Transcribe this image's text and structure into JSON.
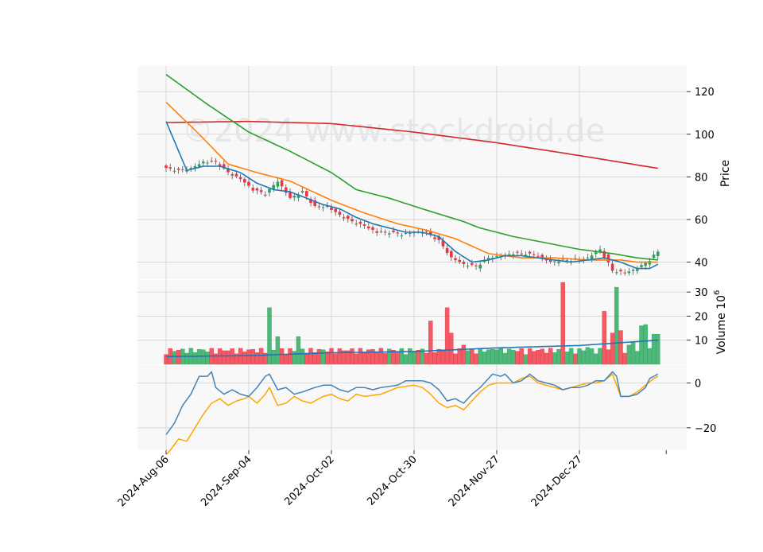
{
  "chart_data": {
    "type": "candlestick",
    "watermark": "©2024 www.stockdroid.de",
    "x_tick_labels": [
      "2024-Aug-06",
      "2024-Sep-04",
      "2024-Oct-02",
      "2024-Oct-30",
      "2024-Nov-27",
      "2024-Dec-27"
    ],
    "x_tick_indices": [
      0,
      20,
      40,
      60,
      80,
      100
    ],
    "n_bars": 120,
    "colors": {
      "up": "#26a65b",
      "down": "#ef3340",
      "ma_short": "#1f77b4",
      "ma_mid": "#ff7f0e",
      "ma_long": "#2ca02c",
      "ma_200": "#d62728",
      "macd": "#4682b4",
      "signal": "#ffa500",
      "grid": "#d0d0d0",
      "panel_bg": "#f8f8f8"
    },
    "price_panel": {
      "ylabel": "Price",
      "ylim": [
        32,
        132
      ],
      "yticks": [
        "40",
        "60",
        "80",
        "100",
        "120"
      ],
      "ytick_values": [
        40,
        60,
        80,
        100,
        120
      ],
      "close_anchors": [
        [
          0,
          84
        ],
        [
          3,
          83
        ],
        [
          6,
          84
        ],
        [
          9,
          87
        ],
        [
          12,
          87
        ],
        [
          15,
          82
        ],
        [
          18,
          79
        ],
        [
          21,
          74
        ],
        [
          24,
          72
        ],
        [
          27,
          78
        ],
        [
          30,
          70
        ],
        [
          33,
          73
        ],
        [
          36,
          66
        ],
        [
          39,
          66
        ],
        [
          42,
          62
        ],
        [
          45,
          59
        ],
        [
          48,
          57
        ],
        [
          51,
          54
        ],
        [
          54,
          54
        ],
        [
          57,
          53
        ],
        [
          60,
          54
        ],
        [
          63,
          54
        ],
        [
          66,
          50
        ],
        [
          69,
          42
        ],
        [
          72,
          39
        ],
        [
          75,
          38
        ],
        [
          78,
          42
        ],
        [
          81,
          43
        ],
        [
          84,
          44
        ],
        [
          87,
          44
        ],
        [
          90,
          43
        ],
        [
          93,
          40
        ],
        [
          96,
          41
        ],
        [
          99,
          41
        ],
        [
          102,
          42
        ],
        [
          105,
          46
        ],
        [
          108,
          36
        ],
        [
          111,
          35
        ],
        [
          114,
          37
        ],
        [
          117,
          41
        ],
        [
          119,
          45
        ]
      ],
      "ma_short_anchors": [
        [
          0,
          106
        ],
        [
          5,
          83
        ],
        [
          9,
          85
        ],
        [
          13,
          85
        ],
        [
          18,
          82
        ],
        [
          22,
          77
        ],
        [
          26,
          74
        ],
        [
          30,
          73
        ],
        [
          34,
          70
        ],
        [
          38,
          67
        ],
        [
          42,
          65
        ],
        [
          46,
          61
        ],
        [
          50,
          58
        ],
        [
          54,
          56
        ],
        [
          58,
          54
        ],
        [
          62,
          54
        ],
        [
          66,
          52
        ],
        [
          70,
          45
        ],
        [
          74,
          40
        ],
        [
          78,
          41
        ],
        [
          82,
          43
        ],
        [
          86,
          43
        ],
        [
          90,
          42
        ],
        [
          94,
          41
        ],
        [
          98,
          40
        ],
        [
          102,
          41
        ],
        [
          106,
          42
        ],
        [
          110,
          40
        ],
        [
          114,
          37
        ],
        [
          117,
          37
        ],
        [
          119,
          39
        ]
      ],
      "ma_mid_anchors": [
        [
          0,
          115
        ],
        [
          8,
          100
        ],
        [
          15,
          86
        ],
        [
          22,
          82
        ],
        [
          30,
          78
        ],
        [
          40,
          69
        ],
        [
          48,
          63
        ],
        [
          56,
          58
        ],
        [
          63,
          55
        ],
        [
          70,
          51
        ],
        [
          78,
          44
        ],
        [
          86,
          42
        ],
        [
          94,
          42
        ],
        [
          102,
          41
        ],
        [
          110,
          41
        ],
        [
          114,
          40
        ],
        [
          119,
          40
        ]
      ],
      "ma_long_anchors": [
        [
          0,
          128
        ],
        [
          10,
          114
        ],
        [
          20,
          101
        ],
        [
          30,
          92
        ],
        [
          40,
          82
        ],
        [
          46,
          74
        ],
        [
          54,
          70
        ],
        [
          62,
          65
        ],
        [
          72,
          59
        ],
        [
          76,
          56
        ],
        [
          84,
          52
        ],
        [
          92,
          49
        ],
        [
          100,
          46
        ],
        [
          108,
          44
        ],
        [
          114,
          42
        ],
        [
          119,
          41
        ]
      ],
      "ma_200_anchors": [
        [
          0,
          105.5
        ],
        [
          20,
          106
        ],
        [
          40,
          105
        ],
        [
          60,
          101
        ],
        [
          80,
          96
        ],
        [
          100,
          90
        ],
        [
          119,
          84
        ]
      ]
    },
    "volume_panel": {
      "ylabel": "Volume  10^6",
      "ylim": [
        0,
        35
      ],
      "yticks": [
        "10",
        "20",
        "30"
      ],
      "ytick_values": [
        10,
        20,
        30
      ],
      "base_level": 5.8,
      "spikes": [
        [
          25,
          23.5
        ],
        [
          27,
          11.5
        ],
        [
          32,
          11.5
        ],
        [
          64,
          18
        ],
        [
          68,
          23.5
        ],
        [
          69,
          13
        ],
        [
          72,
          8
        ],
        [
          80,
          6
        ],
        [
          96,
          34
        ],
        [
          102,
          7
        ],
        [
          106,
          22
        ],
        [
          108,
          13
        ],
        [
          109,
          32
        ],
        [
          110,
          14
        ],
        [
          115,
          16
        ],
        [
          116,
          16.5
        ],
        [
          118,
          12.5
        ],
        [
          119,
          12.5
        ],
        [
          112,
          8
        ],
        [
          113,
          9
        ]
      ],
      "avg_anchors": [
        [
          0,
          3.2
        ],
        [
          20,
          3.6
        ],
        [
          40,
          4.8
        ],
        [
          60,
          5.3
        ],
        [
          80,
          6.8
        ],
        [
          100,
          7.8
        ],
        [
          119,
          10
        ]
      ]
    },
    "macd_panel": {
      "ylim": [
        -30,
        8
      ],
      "yticks": [
        "−20",
        "0"
      ],
      "ytick_values": [
        -20,
        0
      ],
      "macd_anchors": [
        [
          0,
          -23
        ],
        [
          2,
          -18
        ],
        [
          4,
          -10
        ],
        [
          6,
          -5
        ],
        [
          8,
          3
        ],
        [
          10,
          3
        ],
        [
          11,
          5
        ],
        [
          12,
          -2
        ],
        [
          14,
          -5
        ],
        [
          16,
          -3
        ],
        [
          18,
          -5
        ],
        [
          20,
          -6
        ],
        [
          22,
          -2
        ],
        [
          24,
          3
        ],
        [
          25,
          4
        ],
        [
          27,
          -3
        ],
        [
          29,
          -2
        ],
        [
          31,
          -5
        ],
        [
          33,
          -4
        ],
        [
          36,
          -2
        ],
        [
          38,
          -1
        ],
        [
          40,
          -1
        ],
        [
          42,
          -3
        ],
        [
          44,
          -4
        ],
        [
          46,
          -2
        ],
        [
          48,
          -2
        ],
        [
          50,
          -3
        ],
        [
          52,
          -2
        ],
        [
          56,
          -1
        ],
        [
          58,
          1
        ],
        [
          60,
          1
        ],
        [
          62,
          1
        ],
        [
          64,
          0
        ],
        [
          66,
          -3
        ],
        [
          68,
          -8
        ],
        [
          70,
          -7
        ],
        [
          72,
          -9
        ],
        [
          74,
          -5
        ],
        [
          76,
          -2
        ],
        [
          78,
          2
        ],
        [
          79,
          4
        ],
        [
          81,
          3
        ],
        [
          82,
          4
        ],
        [
          84,
          0
        ],
        [
          86,
          1
        ],
        [
          88,
          4
        ],
        [
          90,
          1
        ],
        [
          92,
          0
        ],
        [
          94,
          -1
        ],
        [
          96,
          -3
        ],
        [
          98,
          -2
        ],
        [
          100,
          -2
        ],
        [
          102,
          -1
        ],
        [
          104,
          1
        ],
        [
          106,
          1
        ],
        [
          108,
          5
        ],
        [
          109,
          3
        ],
        [
          110,
          -6
        ],
        [
          112,
          -6
        ],
        [
          114,
          -5
        ],
        [
          116,
          -2
        ],
        [
          117,
          2
        ],
        [
          118,
          3
        ],
        [
          119,
          4
        ]
      ],
      "signal_anchors": [
        [
          0,
          -32
        ],
        [
          1,
          -30
        ],
        [
          3,
          -25
        ],
        [
          5,
          -26
        ],
        [
          7,
          -20
        ],
        [
          9,
          -14
        ],
        [
          11,
          -9
        ],
        [
          13,
          -7
        ],
        [
          15,
          -10
        ],
        [
          17,
          -8
        ],
        [
          19,
          -7
        ],
        [
          20,
          -6
        ],
        [
          22,
          -9
        ],
        [
          24,
          -5
        ],
        [
          25,
          -2
        ],
        [
          27,
          -10
        ],
        [
          29,
          -9
        ],
        [
          31,
          -6
        ],
        [
          33,
          -8
        ],
        [
          35,
          -9
        ],
        [
          38,
          -6
        ],
        [
          40,
          -5
        ],
        [
          42,
          -7
        ],
        [
          44,
          -8
        ],
        [
          46,
          -5
        ],
        [
          48,
          -6
        ],
        [
          52,
          -5
        ],
        [
          56,
          -2
        ],
        [
          60,
          -1
        ],
        [
          62,
          -2
        ],
        [
          64,
          -5
        ],
        [
          66,
          -9
        ],
        [
          68,
          -11
        ],
        [
          70,
          -10
        ],
        [
          72,
          -12
        ],
        [
          74,
          -8
        ],
        [
          76,
          -4
        ],
        [
          78,
          -1
        ],
        [
          80,
          0
        ],
        [
          82,
          0
        ],
        [
          84,
          0
        ],
        [
          86,
          2
        ],
        [
          88,
          3
        ],
        [
          90,
          0
        ],
        [
          92,
          -1
        ],
        [
          94,
          -2
        ],
        [
          96,
          -3
        ],
        [
          98,
          -2
        ],
        [
          100,
          -1
        ],
        [
          102,
          0
        ],
        [
          104,
          0
        ],
        [
          106,
          1
        ],
        [
          108,
          4
        ],
        [
          110,
          -6
        ],
        [
          112,
          -6
        ],
        [
          114,
          -4
        ],
        [
          116,
          -1
        ],
        [
          118,
          2
        ],
        [
          119,
          3
        ]
      ]
    }
  }
}
